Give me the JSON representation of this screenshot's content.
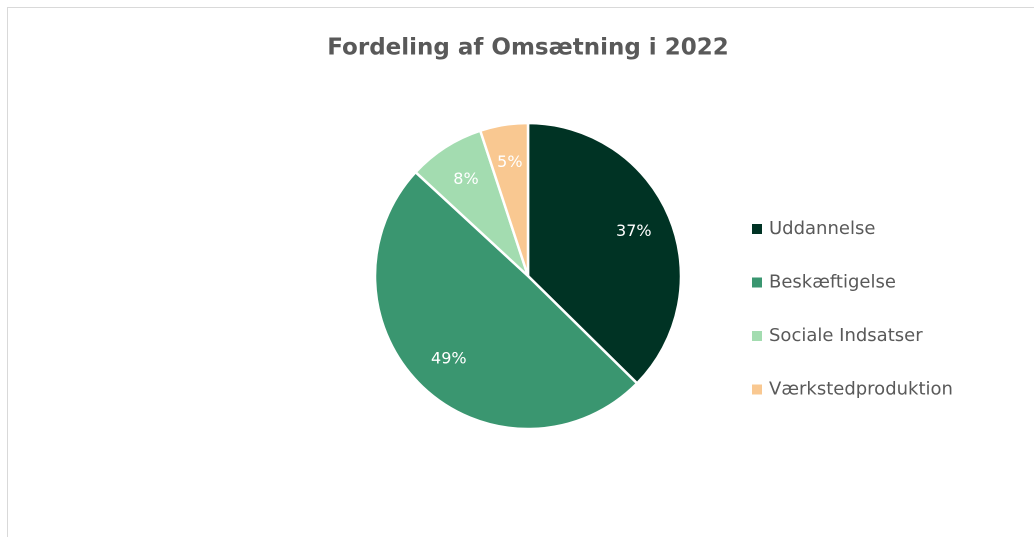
{
  "chart_data": {
    "type": "pie",
    "title": "Fordeling af Omsætning i 2022",
    "categories": [
      "Uddannelse",
      "Beskæftigelse",
      "Sociale Indsatser",
      "Værkstedproduktion"
    ],
    "values": [
      37,
      49,
      8,
      5
    ],
    "value_labels": [
      "37%",
      "49%",
      "8%",
      "5%"
    ],
    "colors": [
      "#003324",
      "#3a9670",
      "#a3dcb0",
      "#f9c891"
    ],
    "legend": "right"
  }
}
